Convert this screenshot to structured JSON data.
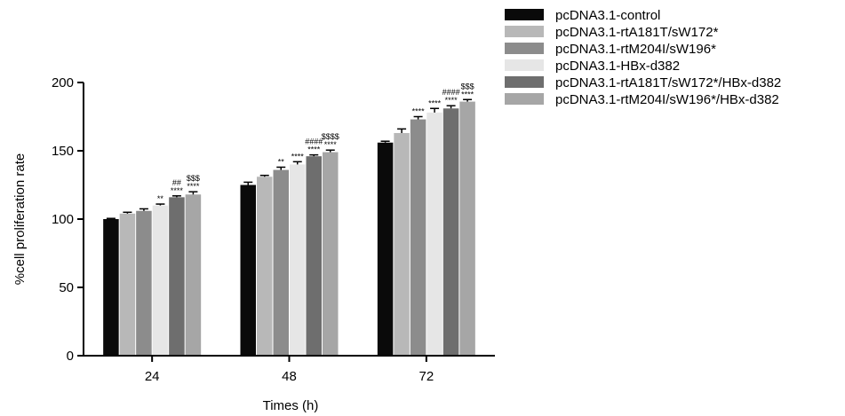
{
  "chart_data": {
    "type": "bar",
    "xlabel": "Times (h)",
    "ylabel": "%cell proliferation rate",
    "ylim": [
      0,
      200
    ],
    "yticks": [
      0,
      50,
      100,
      150,
      200
    ],
    "categories": [
      "24",
      "48",
      "72"
    ],
    "grid": false,
    "legend_position": "top-right",
    "series": [
      {
        "name": "pcDNA3.1-control",
        "color": "#0a0a0a",
        "values": [
          100,
          125,
          156
        ],
        "errors": [
          0.5,
          2,
          1
        ],
        "annotations": [
          [],
          [],
          []
        ]
      },
      {
        "name": "pcDNA3.1-rtA181T/sW172*",
        "color": "#b8b8b8",
        "values": [
          104,
          131,
          163
        ],
        "errors": [
          1,
          1,
          3
        ],
        "annotations": [
          [],
          [],
          []
        ]
      },
      {
        "name": "pcDNA3.1-rtM204I/sW196*",
        "color": "#8c8c8c",
        "values": [
          106,
          136,
          173
        ],
        "errors": [
          1.5,
          2,
          2
        ],
        "annotations": [
          [],
          [
            "**"
          ],
          [
            "****"
          ]
        ]
      },
      {
        "name": "pcDNA3.1-HBx-d382",
        "color": "#e6e6e6",
        "values": [
          110,
          140,
          178
        ],
        "errors": [
          1,
          2,
          3
        ],
        "annotations": [
          [
            "**"
          ],
          [
            "****"
          ],
          [
            "****"
          ]
        ]
      },
      {
        "name": "pcDNA3.1-rtA181T/sW172*/HBx-d382",
        "color": "#6e6e6e",
        "values": [
          116,
          146,
          181
        ],
        "errors": [
          1,
          1,
          2
        ],
        "annotations": [
          [
            "##",
            "****"
          ],
          [
            "####",
            "****"
          ],
          [
            "####",
            "****"
          ]
        ]
      },
      {
        "name": "pcDNA3.1-rtM204I/sW196*/HBx-d382",
        "color": "#a6a6a6",
        "values": [
          118,
          149,
          186
        ],
        "errors": [
          2,
          1.5,
          1.5
        ],
        "annotations": [
          [
            "$$$",
            "****"
          ],
          [
            "$$$$",
            "****"
          ],
          [
            "$$$",
            "****"
          ]
        ]
      }
    ]
  }
}
